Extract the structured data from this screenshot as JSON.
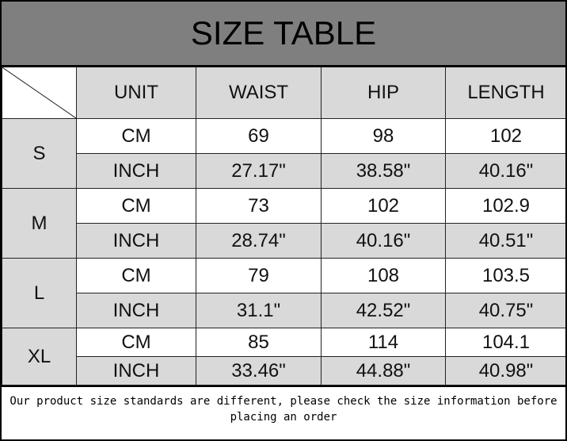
{
  "title": "SIZE TABLE",
  "headers": [
    "UNIT",
    "WAIST",
    "HIP",
    "LENGTH"
  ],
  "rows": [
    {
      "size": "S",
      "cm": {
        "unit": "CM",
        "waist": "69",
        "hip": "98",
        "length": "102"
      },
      "inch": {
        "unit": "INCH",
        "waist": "27.17\"",
        "hip": "38.58\"",
        "length": "40.16\""
      }
    },
    {
      "size": "M",
      "cm": {
        "unit": "CM",
        "waist": "73",
        "hip": "102",
        "length": "102.9"
      },
      "inch": {
        "unit": "INCH",
        "waist": "28.74\"",
        "hip": "40.16\"",
        "length": "40.51\""
      }
    },
    {
      "size": "L",
      "cm": {
        "unit": "CM",
        "waist": "79",
        "hip": "108",
        "length": "103.5"
      },
      "inch": {
        "unit": "INCH",
        "waist": "31.1\"",
        "hip": "42.52\"",
        "length": "40.75\""
      }
    },
    {
      "size": "XL",
      "cm": {
        "unit": "CM",
        "waist": "85",
        "hip": "114",
        "length": "104.1"
      },
      "inch": {
        "unit": "INCH",
        "waist": "33.46\"",
        "hip": "44.88\"",
        "length": "40.98\""
      }
    }
  ],
  "note": "Our product size standards are different, please check the size information before placing an order",
  "colors": {
    "title_bg": "#7f7f7f",
    "cell_gray": "#d9d9d9"
  }
}
